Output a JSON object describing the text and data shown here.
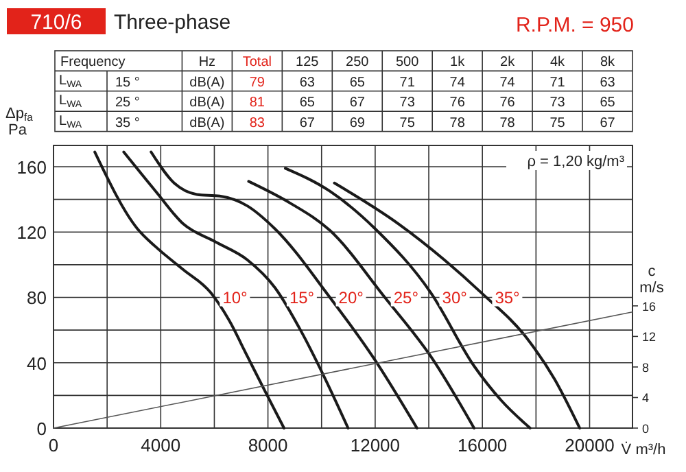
{
  "chart_data": [
    {
      "type": "other",
      "title": "710/6",
      "subtitle": "Three-phase",
      "annotations": [
        "R.P.M. = 950"
      ],
      "categories": [
        "Frequency",
        "Hz",
        "Total",
        "125",
        "250",
        "500",
        "1k",
        "2k",
        "4k",
        "8k"
      ],
      "y_categories": [
        "L$_{WA}$",
        "L$_{WA}$",
        "L$_{WA}$"
      ],
      "cell_labels": [
        [
          "15 °",
          "dB(A)",
          "79",
          "63",
          "65",
          "71",
          "74",
          "74",
          "71",
          "63"
        ],
        [
          "25 °",
          "dB(A)",
          "81",
          "65",
          "67",
          "73",
          "76",
          "76",
          "73",
          "65"
        ],
        [
          "35 °",
          "dB(A)",
          "83",
          "67",
          "69",
          "75",
          "78",
          "78",
          "75",
          "67"
        ]
      ]
    },
    {
      "type": "line",
      "xlabel": "V̇ m³/h",
      "ylabel": "Δp$_{fa}$ Pa",
      "y2label": "c m/s",
      "annotations": [
        "ρ = 1,20 kg/m³"
      ],
      "xlim": [
        0,
        21600
      ],
      "ylim": [
        0,
        173
      ],
      "y2lim": [
        0,
        37
      ],
      "grid": true,
      "xticks": [
        0,
        {
          "value": 2000,
          "label": null
        },
        4000,
        {
          "value": 6000,
          "label": null
        },
        8000,
        {
          "value": 10000,
          "label": null
        },
        12000,
        {
          "value": 14000,
          "label": null
        },
        16000,
        {
          "value": 18000,
          "label": null
        },
        20000
      ],
      "yticks": [
        0,
        {
          "value": 20,
          "label": null
        },
        40,
        {
          "value": 60,
          "label": null
        },
        80,
        {
          "value": 100,
          "label": null
        },
        120,
        {
          "value": 140,
          "label": null
        },
        160
      ],
      "y2ticks": [
        0,
        4,
        8,
        12,
        16
      ],
      "series": [
        {
          "name": "10°",
          "color": "#1a1a1a",
          "x": [
            1540,
            3130,
            3810,
            4840,
            5860,
            6550,
            7230,
            7910,
            8600
          ],
          "values": [
            169,
            122,
            111,
            97,
            83,
            66,
            44,
            22,
            0
          ]
        },
        {
          "name": "15°",
          "color": "#1a1a1a",
          "x": [
            2620,
            3810,
            4840,
            6040,
            7230,
            8260,
            9280,
            10140,
            10990
          ],
          "values": [
            169,
            145,
            125,
            114,
            103,
            86,
            58,
            30,
            0
          ]
        },
        {
          "name": "20°",
          "color": "#1a1a1a",
          "x": [
            3640,
            4500,
            5350,
            6200,
            7230,
            8260,
            10310,
            12020,
            13560
          ],
          "values": [
            169,
            150,
            143,
            142,
            136,
            122,
            80,
            41,
            0
          ]
        },
        {
          "name": "25°",
          "color": "#1a1a1a",
          "x": [
            7280,
            8800,
            10310,
            12360,
            14070,
            15690
          ],
          "values": [
            151,
            138,
            121,
            80,
            44,
            0
          ]
        },
        {
          "name": "30°",
          "color": "#1a1a1a",
          "x": [
            8650,
            10310,
            12000,
            14070,
            15690,
            16700,
            17780
          ],
          "values": [
            159,
            145,
            122,
            83,
            38,
            17,
            0
          ]
        },
        {
          "name": "35°",
          "color": "#1a1a1a",
          "x": [
            10480,
            12870,
            14580,
            15950,
            17660,
            18690,
            19630
          ],
          "values": [
            150,
            125,
            103,
            83,
            55,
            30,
            0
          ]
        },
        {
          "color": "#555555",
          "axis": "y2",
          "x": [
            0,
            21600
          ],
          "values": [
            0,
            15.2
          ]
        }
      ]
    }
  ]
}
